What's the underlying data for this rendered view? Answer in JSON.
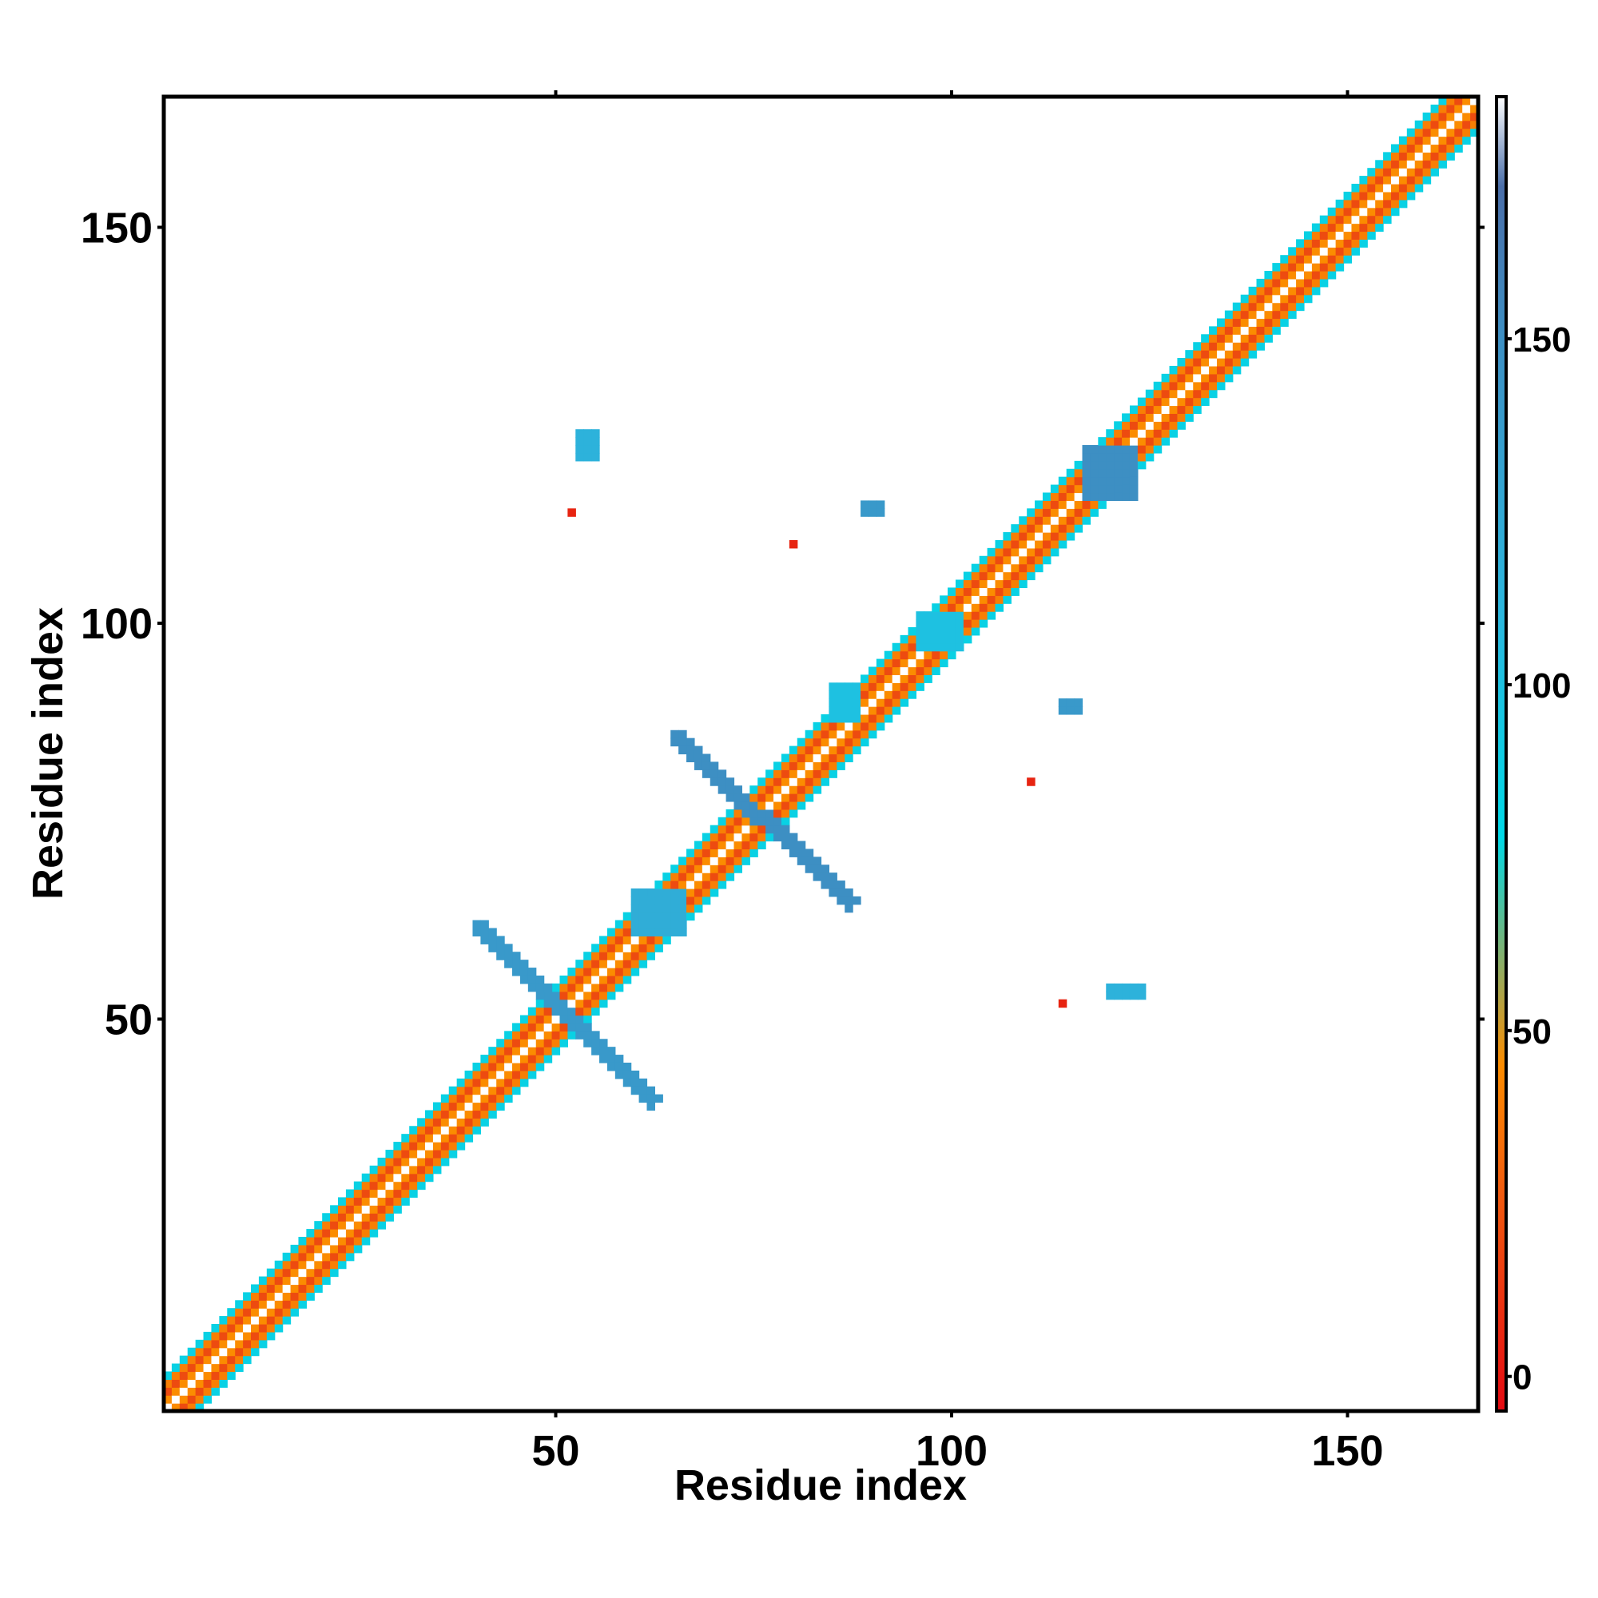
{
  "chart_data": {
    "type": "heatmap",
    "title": "",
    "xlabel": "Residue index",
    "ylabel": "Residue index",
    "xlim": [
      1,
      166
    ],
    "ylim": [
      1,
      166
    ],
    "x_ticks": [
      50,
      100,
      150
    ],
    "y_ticks": [
      50,
      100,
      150
    ],
    "grid": false,
    "colorbar": {
      "range": [
        -5,
        185
      ],
      "ticks": [
        0,
        50,
        100,
        150
      ],
      "color_stops": [
        {
          "value": -5,
          "color": "#e30b12"
        },
        {
          "value": 26,
          "color": "#f05a10"
        },
        {
          "value": 45,
          "color": "#fb8c00"
        },
        {
          "value": 78,
          "color": "#00d8e6"
        },
        {
          "value": 110,
          "color": "#2bb7de"
        },
        {
          "value": 150,
          "color": "#3d8fc3"
        },
        {
          "value": 172,
          "color": "#4a6ea8"
        },
        {
          "value": 185,
          "color": "#ffffff"
        }
      ]
    },
    "diagonal_pattern": {
      "residues": [
        1,
        166
      ],
      "offset_values": [
        {
          "offset": 0,
          "value": 185
        },
        {
          "offset": 1,
          "value": 45
        },
        {
          "offset": 2,
          "value": 20
        },
        {
          "offset": 3,
          "value": 40
        },
        {
          "offset": 4,
          "value": 85
        }
      ]
    },
    "features": [
      {
        "type": "antidiagonal_band",
        "from": [
          40,
          62
        ],
        "to": [
          62,
          40
        ],
        "value": 140
      },
      {
        "type": "antidiagonal_band",
        "from": [
          65,
          86
        ],
        "to": [
          87,
          65
        ],
        "value": 150
      },
      {
        "type": "patch",
        "residues_x": [
          117,
          123
        ],
        "residues_y": [
          116,
          122
        ],
        "value": 150
      },
      {
        "type": "patch",
        "residues_x": [
          53,
          55
        ],
        "residues_y": [
          121,
          124
        ],
        "value": 115
      },
      {
        "type": "patch",
        "residues_x": [
          89,
          91
        ],
        "residues_y": [
          114,
          115
        ],
        "value": 140
      },
      {
        "type": "patch",
        "residues_x": [
          114,
          116
        ],
        "residues_y": [
          89,
          90
        ],
        "value": 140
      },
      {
        "type": "patch",
        "residues_x": [
          120,
          124
        ],
        "residues_y": [
          53,
          54
        ],
        "value": 115
      },
      {
        "type": "patch",
        "residues_x": [
          60,
          66
        ],
        "residues_y": [
          61,
          66
        ],
        "value": 120
      },
      {
        "type": "patch",
        "residues_x": [
          85,
          88
        ],
        "residues_y": [
          88,
          92
        ],
        "value": 100
      },
      {
        "type": "patch",
        "residues_x": [
          96,
          101
        ],
        "residues_y": [
          97,
          101
        ],
        "value": 100
      },
      {
        "type": "point",
        "x": 52,
        "y": 114,
        "value": 5
      },
      {
        "type": "point",
        "x": 80,
        "y": 110,
        "value": 5
      },
      {
        "type": "point",
        "x": 110,
        "y": 80,
        "value": 5
      },
      {
        "type": "point",
        "x": 114,
        "y": 52,
        "value": 5
      }
    ]
  }
}
